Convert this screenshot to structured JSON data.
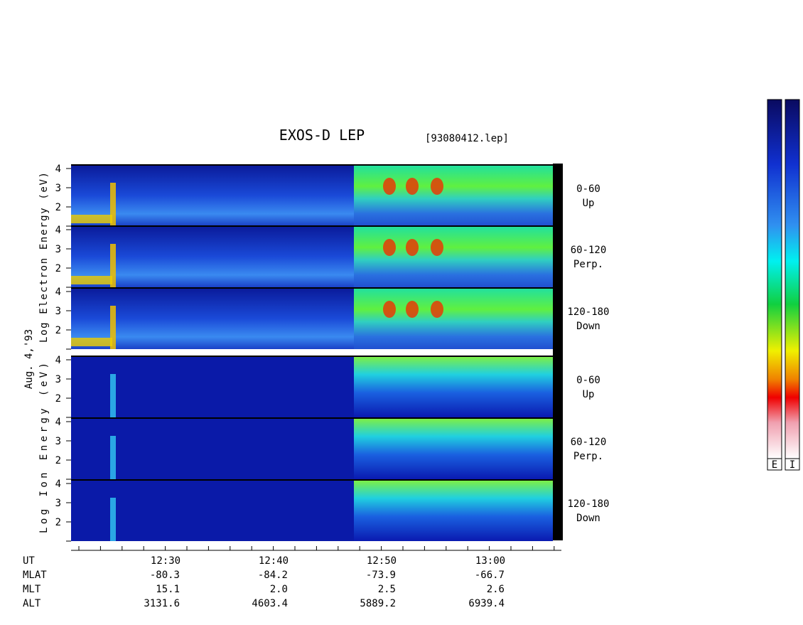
{
  "header": {
    "title": "EXOS-D LEP",
    "file": "[93080412.lep]"
  },
  "electron_panels": [
    {
      "yticks": [
        "4",
        "3",
        "2"
      ],
      "angle": "0-60",
      "direction": "Up"
    },
    {
      "yticks": [
        "4",
        "3",
        "2"
      ],
      "angle": "60-120",
      "direction": "Perp."
    },
    {
      "yticks": [
        "4",
        "3",
        "2"
      ],
      "angle": "120-180",
      "direction": "Down"
    }
  ],
  "ion_panels": [
    {
      "yticks": [
        "4",
        "3",
        "2"
      ],
      "angle": "0-60",
      "direction": "Up"
    },
    {
      "yticks": [
        "4",
        "3",
        "2"
      ],
      "angle": "60-120",
      "direction": "Perp."
    },
    {
      "yticks": [
        "4",
        "3",
        "2"
      ],
      "angle": "120-180",
      "direction": "Down"
    }
  ],
  "axis_labels": {
    "electron": "Log Electron Energy (eV)",
    "ion": "Log Ion Energy (eV)",
    "date": "Aug. 4,'93"
  },
  "orbit": {
    "rows": [
      {
        "label": "UT",
        "values": [
          "12:30",
          "12:40",
          "12:50",
          "13:00"
        ]
      },
      {
        "label": "MLAT",
        "values": [
          "-80.3",
          "-84.2",
          "-73.9",
          "-66.7"
        ]
      },
      {
        "label": "MLT",
        "values": [
          "15.1",
          "2.0",
          "2.5",
          "2.6"
        ]
      },
      {
        "label": "ALT",
        "values": [
          "3131.6",
          "4603.4",
          "5889.2",
          "6939.4"
        ]
      }
    ]
  },
  "colorbar": {
    "labels": [
      "E",
      "I"
    ]
  }
}
